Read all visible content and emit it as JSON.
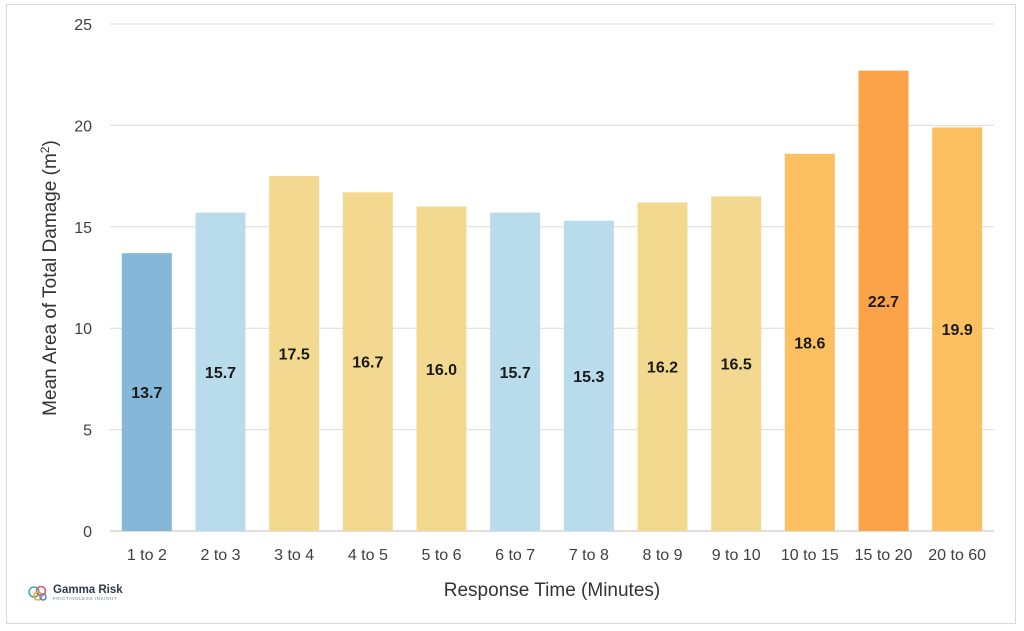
{
  "chart_data": {
    "type": "bar",
    "categories": [
      "1 to 2",
      "2 to 3",
      "3 to 4",
      "4 to 5",
      "5 to 6",
      "6 to 7",
      "7 to 8",
      "8 to 9",
      "9 to 10",
      "10 to 15",
      "15 to 20",
      "20 to 60"
    ],
    "values": [
      13.7,
      15.7,
      17.5,
      16.7,
      16.0,
      15.7,
      15.3,
      16.2,
      16.5,
      18.6,
      22.7,
      19.9
    ],
    "value_labels": [
      "13.7",
      "15.7",
      "17.5",
      "16.7",
      "16.0",
      "15.7",
      "15.3",
      "16.2",
      "16.5",
      "18.6",
      "22.7",
      "19.9"
    ],
    "colors": [
      "#85b8d8",
      "#b8dcec",
      "#f3d98f",
      "#f3d98f",
      "#f3d98f",
      "#b8dcec",
      "#b8dcec",
      "#f3d98f",
      "#f3d98f",
      "#fcc061",
      "#fca34a",
      "#fcc061"
    ],
    "xlabel": "Response Time (Minutes)",
    "ylabel_prefix": "Mean Area of Total Damage (m",
    "ylabel_sup": "2",
    "ylabel_suffix": ")",
    "ylim": [
      0,
      25
    ],
    "yticks": [
      0,
      5,
      10,
      15,
      20,
      25
    ],
    "grid": true,
    "legend": "none"
  },
  "logo": {
    "name": "Gamma Risk",
    "tagline": "FRICTIONLESS INSIGHT"
  }
}
